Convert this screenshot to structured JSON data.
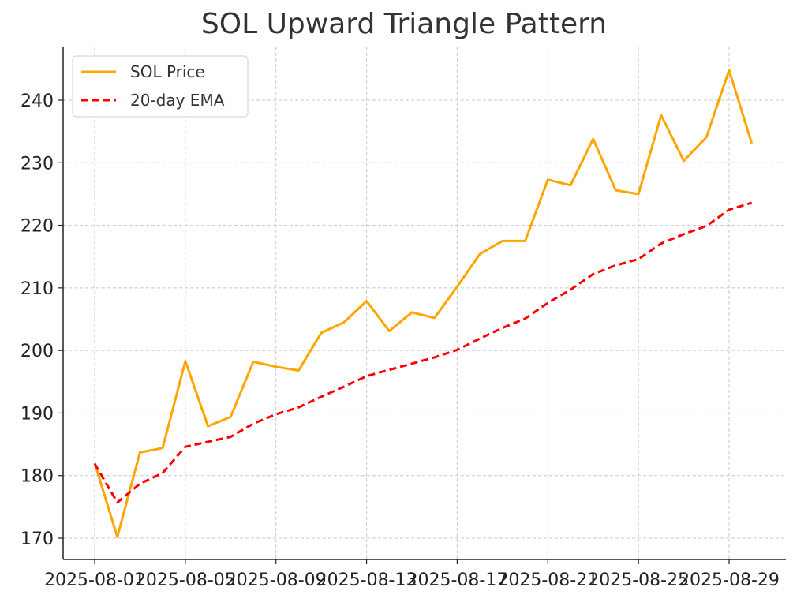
{
  "chart_data": {
    "type": "line",
    "title": "SOL Upward Triangle Pattern",
    "xlabel": "",
    "ylabel": "",
    "x": [
      "2025-08-01",
      "2025-08-02",
      "2025-08-03",
      "2025-08-04",
      "2025-08-05",
      "2025-08-06",
      "2025-08-07",
      "2025-08-08",
      "2025-08-09",
      "2025-08-10",
      "2025-08-11",
      "2025-08-12",
      "2025-08-13",
      "2025-08-14",
      "2025-08-15",
      "2025-08-16",
      "2025-08-17",
      "2025-08-18",
      "2025-08-19",
      "2025-08-20",
      "2025-08-21",
      "2025-08-22",
      "2025-08-23",
      "2025-08-24",
      "2025-08-25",
      "2025-08-26",
      "2025-08-27",
      "2025-08-28",
      "2025-08-29",
      "2025-08-30"
    ],
    "xticks": [
      "2025-08-01",
      "2025-08-05",
      "2025-08-09",
      "2025-08-13",
      "2025-08-17",
      "2025-08-21",
      "2025-08-25",
      "2025-08-29"
    ],
    "yticks": [
      170,
      180,
      190,
      200,
      210,
      220,
      230,
      240
    ],
    "ylim": [
      166.5,
      248.5
    ],
    "grid": true,
    "legend_position": "top-left",
    "series": [
      {
        "name": "SOL Price",
        "color": "#FFA500",
        "dash": "solid",
        "values": [
          182.0,
          170.2,
          183.7,
          184.4,
          198.3,
          187.9,
          189.4,
          198.2,
          197.4,
          196.8,
          202.8,
          204.5,
          207.9,
          203.1,
          206.1,
          205.2,
          210.2,
          215.4,
          217.5,
          217.5,
          227.3,
          226.4,
          233.8,
          225.6,
          225.0,
          237.6,
          230.3,
          234.1,
          244.8,
          233.1
        ]
      },
      {
        "name": "20-day EMA",
        "color": "#FF0000",
        "dash": "dashed",
        "values": [
          181.9,
          175.7,
          178.7,
          180.4,
          184.6,
          185.4,
          186.2,
          188.3,
          189.8,
          190.9,
          192.6,
          194.2,
          195.9,
          196.9,
          197.9,
          198.9,
          200.1,
          201.9,
          203.6,
          205.1,
          207.6,
          209.7,
          212.2,
          213.6,
          214.6,
          217.1,
          218.6,
          219.9,
          222.5,
          223.6
        ]
      }
    ]
  }
}
